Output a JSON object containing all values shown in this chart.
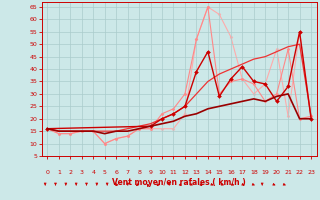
{
  "bg_color": "#cce8e8",
  "grid_color": "#aacccc",
  "tick_color": "#cc0000",
  "xlabel": "Vent moyen/en rafales ( km/h )",
  "xlabel_color": "#cc0000",
  "arrow_color": "#cc0000",
  "xlim": [
    -0.5,
    23.5
  ],
  "ylim": [
    5,
    67
  ],
  "yticks": [
    5,
    10,
    15,
    20,
    25,
    30,
    35,
    40,
    45,
    50,
    55,
    60,
    65
  ],
  "xticks": [
    0,
    1,
    2,
    3,
    4,
    5,
    6,
    7,
    8,
    9,
    10,
    11,
    12,
    13,
    14,
    15,
    16,
    17,
    18,
    19,
    20,
    21,
    22,
    23
  ],
  "lines": [
    {
      "x": [
        0,
        1,
        2,
        3,
        4,
        5,
        6,
        7,
        8,
        9,
        10,
        11,
        12,
        13,
        14,
        15,
        16,
        17,
        18,
        19,
        20,
        21,
        22,
        23
      ],
      "y": [
        16,
        14,
        14,
        15,
        15,
        10,
        12,
        13,
        16,
        16,
        16,
        16,
        22,
        52,
        65,
        62,
        53,
        36,
        30,
        34,
        48,
        21,
        55,
        21
      ],
      "color": "#ffaaaa",
      "lw": 0.8,
      "marker": "D",
      "ms": 1.5,
      "zorder": 1
    },
    {
      "x": [
        0,
        1,
        2,
        3,
        4,
        5,
        6,
        7,
        8,
        9,
        10,
        11,
        12,
        13,
        14,
        15,
        16,
        17,
        18,
        19,
        20,
        21,
        22,
        23
      ],
      "y": [
        16,
        14,
        14,
        15,
        15,
        10,
        12,
        13,
        16,
        16,
        22,
        24,
        30,
        52,
        65,
        30,
        35,
        36,
        34,
        27,
        30,
        48,
        20,
        21
      ],
      "color": "#ff8888",
      "lw": 0.8,
      "marker": "D",
      "ms": 1.5,
      "zorder": 2
    },
    {
      "x": [
        0,
        1,
        2,
        3,
        4,
        5,
        6,
        7,
        8,
        9,
        10,
        11,
        12,
        13,
        14,
        15,
        16,
        17,
        18,
        19,
        20,
        21,
        22,
        23
      ],
      "y": [
        16,
        15,
        15,
        15,
        15,
        15,
        15,
        16,
        17,
        18,
        20,
        22,
        25,
        30,
        35,
        38,
        40,
        42,
        44,
        45,
        47,
        49,
        50,
        21
      ],
      "color": "#ee3333",
      "lw": 0.9,
      "marker": null,
      "ms": 0,
      "zorder": 3
    },
    {
      "x": [
        0,
        9,
        10,
        11,
        12,
        13,
        14,
        15,
        16,
        17,
        18,
        19,
        20,
        21,
        22,
        23
      ],
      "y": [
        16,
        17,
        20,
        22,
        25,
        39,
        47,
        29,
        36,
        41,
        35,
        34,
        27,
        33,
        55,
        20
      ],
      "color": "#cc0000",
      "lw": 1.0,
      "marker": "D",
      "ms": 2.0,
      "zorder": 4
    },
    {
      "x": [
        0,
        1,
        2,
        3,
        4,
        5,
        6,
        7,
        8,
        9,
        10,
        11,
        12,
        13,
        14,
        15,
        16,
        17,
        18,
        19,
        20,
        21,
        22,
        23
      ],
      "y": [
        16,
        15,
        15,
        15,
        15,
        14,
        15,
        15,
        16,
        17,
        18,
        19,
        21,
        22,
        24,
        25,
        26,
        27,
        28,
        27,
        29,
        30,
        20,
        20
      ],
      "color": "#990000",
      "lw": 1.2,
      "marker": null,
      "ms": 0,
      "zorder": 5
    }
  ],
  "arrows_x": [
    0,
    1,
    2,
    3,
    4,
    5,
    6,
    7,
    8,
    9,
    10,
    11,
    12,
    13,
    14,
    15,
    16,
    17,
    18,
    19,
    20,
    21,
    22,
    23
  ],
  "arrows_dir": [
    [
      0,
      -1
    ],
    [
      0,
      -1
    ],
    [
      0,
      -1
    ],
    [
      0,
      -1
    ],
    [
      0,
      -1
    ],
    [
      0,
      -1
    ],
    [
      0,
      -1
    ],
    [
      -0.5,
      -0.5
    ],
    [
      0,
      -1
    ],
    [
      -0.5,
      -0.5
    ],
    [
      -0.3,
      -0.7
    ],
    [
      -0.5,
      -0.5
    ],
    [
      0,
      -1
    ],
    [
      0.5,
      -0.5
    ],
    [
      0.7,
      -0.3
    ],
    [
      0.5,
      -0.5
    ],
    [
      0.7,
      -0.3
    ],
    [
      0.7,
      -0.3
    ],
    [
      0.7,
      -0.3
    ],
    [
      0.7,
      -0.3
    ],
    [
      0.7,
      -0.3
    ],
    [
      0,
      -1
    ],
    [
      0.7,
      -0.3
    ],
    [
      0.7,
      -0.3
    ]
  ]
}
